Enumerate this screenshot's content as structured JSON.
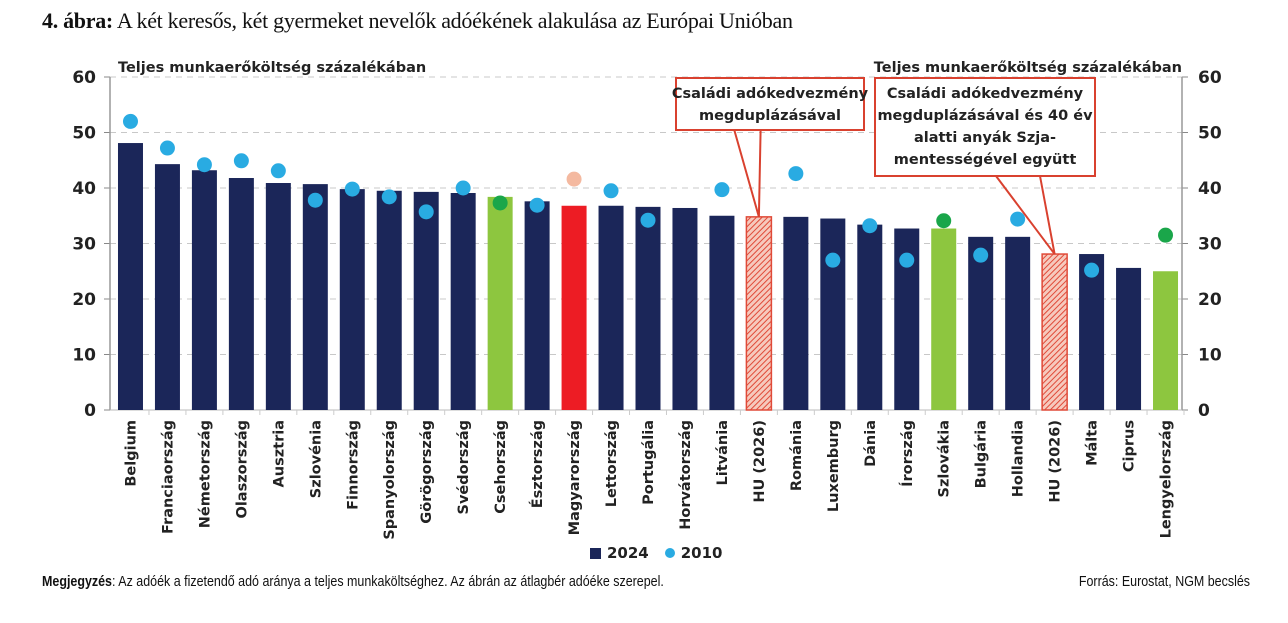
{
  "title": {
    "prefix": "4. ábra:",
    "text": " A két keresős, két gyermeket nevelők adóékének alakulása az Európai Unióban"
  },
  "chart_data": {
    "type": "bar",
    "title": "A két keresős, két gyermeket nevelők adóékének alakulása az Európai Unióban",
    "ylabel_left": "Teljes munkaerőköltség százalékában",
    "ylabel_right": "Teljes munkaerőköltség százalékában",
    "xlabel": "",
    "ylim": [
      0,
      60
    ],
    "yticks": [
      0,
      10,
      20,
      30,
      40,
      50,
      60
    ],
    "grid": true,
    "legend_position": "bottom-center",
    "categories": [
      "Belgium",
      "Franciaország",
      "Németország",
      "Olaszország",
      "Ausztria",
      "Szlovénia",
      "Finnország",
      "Spanyolország",
      "Görögország",
      "Svédország",
      "Csehország",
      "Észtország",
      "Magyarország",
      "Lettország",
      "Portugália",
      "Horvátország",
      "Litvánia",
      "HU (2026)",
      "Románia",
      "Luxemburg",
      "Dánia",
      "Írország",
      "Szlovákia",
      "Bulgária",
      "Hollandia",
      "HU (2026)",
      "Málta",
      "Ciprus",
      "Lengyelország"
    ],
    "series": [
      {
        "name": "2024",
        "kind": "bar",
        "color": "#1b2659",
        "values": [
          48.1,
          44.3,
          43.2,
          41.8,
          40.9,
          40.7,
          39.8,
          39.5,
          39.3,
          39.1,
          38.4,
          37.6,
          36.8,
          36.8,
          36.6,
          36.4,
          35.0,
          34.8,
          34.8,
          34.5,
          33.4,
          32.7,
          32.7,
          31.2,
          31.2,
          28.1,
          28.1,
          25.6,
          25.0
        ],
        "styles": [
          "navy",
          "navy",
          "navy",
          "navy",
          "navy",
          "navy",
          "navy",
          "navy",
          "navy",
          "navy",
          "green",
          "navy",
          "red",
          "navy",
          "navy",
          "navy",
          "navy",
          "hatched",
          "navy",
          "navy",
          "navy",
          "navy",
          "green",
          "navy",
          "navy",
          "hatched",
          "navy",
          "navy",
          "green"
        ]
      },
      {
        "name": "2010",
        "kind": "dot",
        "color": "#29abe2",
        "values": [
          52.0,
          47.2,
          44.2,
          44.9,
          43.1,
          37.8,
          39.8,
          38.4,
          35.7,
          40.0,
          37.3,
          36.9,
          41.6,
          39.5,
          34.2,
          null,
          39.7,
          null,
          42.6,
          27.0,
          33.2,
          27.0,
          34.1,
          27.9,
          34.4,
          null,
          25.2,
          null,
          31.5
        ],
        "styles": [
          "blue",
          "blue",
          "blue",
          "blue",
          "blue",
          "blue",
          "blue",
          "blue",
          "blue",
          "blue",
          "green",
          "blue",
          "peach",
          "blue",
          "blue",
          null,
          "blue",
          null,
          "blue",
          "blue",
          "blue",
          "blue",
          "green",
          "blue",
          "blue",
          null,
          "blue",
          null,
          "green"
        ]
      }
    ],
    "colors": {
      "navy": "#1b2659",
      "green": "#8dc63f",
      "red": "#ed1c24",
      "hatched": "#e8553f",
      "blue": "#29abe2",
      "dotgreen": "#1aa64a",
      "peach": "#f4b9a0"
    },
    "annotations": [
      {
        "text": [
          "Családi adókedvezmény",
          "megduplázásával"
        ],
        "target_index": 17
      },
      {
        "text": [
          "Családi adókedvezmény",
          "megduplázásával és 40 év",
          "alatti anyák Szja-",
          "mentességével együtt"
        ],
        "target_index": 25
      }
    ]
  },
  "legend": {
    "bar_label": "2024",
    "dot_label": "2010"
  },
  "note": {
    "label": "Megjegyzés",
    "text": ": Az adóék a fizetendő adó aránya a teljes munkaköltséghez. Az ábrán az átlagbér adóéke szerepel."
  },
  "source": "Forrás: Eurostat, NGM becslés"
}
